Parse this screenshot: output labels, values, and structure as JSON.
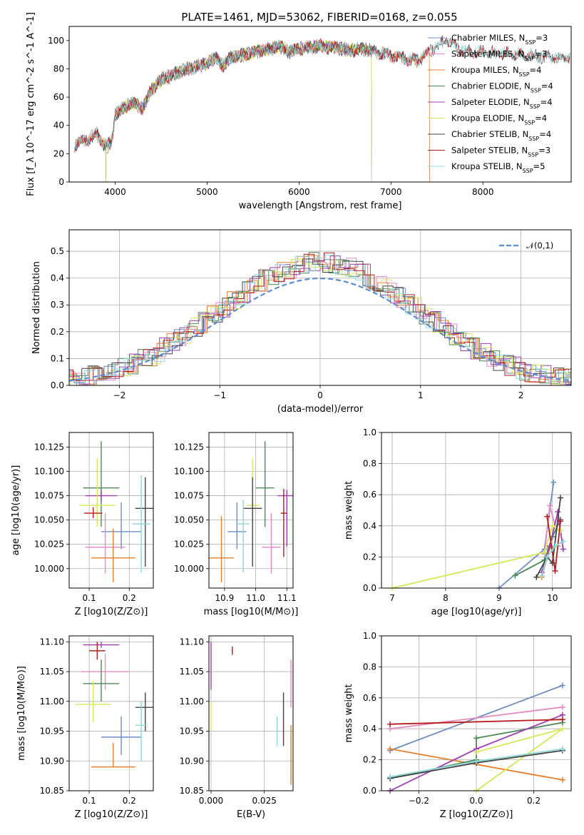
{
  "figure": {
    "title": "PLATE=1461, MJD=53062, FIBERID=0168, z=0.055"
  },
  "chart_data": [
    {
      "id": "spectrum",
      "type": "line",
      "xlabel": "wavelength [Angstrom, rest frame]",
      "ylabel": "Flux [f_λ 10^-17 erg cm^-2 s^-1 A^-1]",
      "xlim": [
        3500,
        8960
      ],
      "ylim": [
        0,
        110
      ],
      "xticks": [
        "4000",
        "5000",
        "6000",
        "7000",
        "8000"
      ],
      "yticks": [
        "0",
        "20",
        "40",
        "60",
        "80",
        "100"
      ],
      "grid": false,
      "legend_position": "top-right",
      "series": [
        {
          "name": "Chabrier MILES, N_SSP=3",
          "color": "#6c8ebf",
          "x_range": [
            3560,
            7420
          ]
        },
        {
          "name": "Salpeter MILES, N_SSP=3",
          "color": "#e68ac3",
          "x_range": [
            3560,
            7420
          ]
        },
        {
          "name": "Kroupa MILES, N_SSP=4",
          "color": "#e87e29",
          "x_range": [
            3560,
            7420
          ]
        },
        {
          "name": "Chabrier ELODIE, N_SSP=4",
          "color": "#4c8b57",
          "x_range": [
            3900,
            6790
          ]
        },
        {
          "name": "Salpeter ELODIE, N_SSP=4",
          "color": "#a03bb4",
          "x_range": [
            3900,
            6790
          ]
        },
        {
          "name": "Kroupa ELODIE, N_SSP=4",
          "color": "#d6e85a",
          "x_range": [
            3900,
            6790
          ]
        },
        {
          "name": "Chabrier STELIB, N_SSP=4",
          "color": "#444444",
          "x_range": [
            3560,
            8950
          ]
        },
        {
          "name": "Salpeter STELIB, N_SSP=3",
          "color": "#b71c1c",
          "x_range": [
            3560,
            8950
          ]
        },
        {
          "name": "Kroupa STELIB, N_SSP=5",
          "color": "#8fd8d8",
          "x_range": [
            3560,
            8950
          ]
        }
      ],
      "continuum_points": [
        [
          3560,
          26
        ],
        [
          3700,
          30
        ],
        [
          3800,
          34
        ],
        [
          3900,
          25
        ],
        [
          3960,
          28
        ],
        [
          4000,
          47
        ],
        [
          4100,
          53
        ],
        [
          4200,
          56
        ],
        [
          4300,
          52
        ],
        [
          4400,
          66
        ],
        [
          4500,
          72
        ],
        [
          4600,
          75
        ],
        [
          4700,
          78
        ],
        [
          4800,
          80
        ],
        [
          4900,
          82
        ],
        [
          5000,
          84
        ],
        [
          5100,
          88
        ],
        [
          5175,
          82
        ],
        [
          5250,
          88
        ],
        [
          5400,
          90
        ],
        [
          5600,
          93
        ],
        [
          5800,
          96
        ],
        [
          5890,
          92
        ],
        [
          6000,
          94
        ],
        [
          6200,
          96
        ],
        [
          6400,
          95
        ],
        [
          6563,
          93
        ],
        [
          6700,
          94
        ],
        [
          6900,
          91
        ],
        [
          7100,
          88
        ],
        [
          7300,
          86
        ],
        [
          7500,
          96
        ],
        [
          7600,
          100
        ],
        [
          7800,
          92
        ],
        [
          8000,
          92
        ],
        [
          8200,
          91
        ],
        [
          8400,
          90
        ],
        [
          8600,
          89
        ],
        [
          8800,
          88
        ],
        [
          8950,
          88
        ]
      ]
    },
    {
      "id": "residuals",
      "type": "histogram",
      "xlabel": "(data-model)/error",
      "ylabel": "Normed distribution",
      "xlim": [
        -2.5,
        2.5
      ],
      "ylim": [
        0,
        0.58
      ],
      "xticks": [
        "−2",
        "−1",
        "0",
        "1",
        "2"
      ],
      "yticks": [
        "0.0",
        "0.1",
        "0.2",
        "0.3",
        "0.4",
        "0.5"
      ],
      "grid": true,
      "legend_position": "top-right",
      "reference_curve": {
        "name": "𝒩(0,1)",
        "color": "#5b8bd6",
        "style": "dashed"
      },
      "bin_width": 0.1
    },
    {
      "id": "age-vs-Z",
      "type": "scatter",
      "xlabel": "Z [log10(Z/Z⊙)]",
      "ylabel": "age [log10(age/yr)]",
      "xlim": [
        0.05,
        0.26
      ],
      "ylim": [
        9.98,
        10.14
      ],
      "xticks": [
        "0.1",
        "0.2"
      ],
      "yticks": [
        "10.000",
        "10.025",
        "10.050",
        "10.075",
        "10.100",
        "10.125"
      ],
      "grid": true,
      "points": [
        {
          "series": 0,
          "x": 0.18,
          "y": 10.038,
          "xerr": 0.05,
          "yerr": [
            0.018,
            0.03
          ]
        },
        {
          "series": 1,
          "x": 0.14,
          "y": 10.022,
          "xerr": 0.05,
          "yerr": [
            0.027,
            0.035
          ]
        },
        {
          "series": 2,
          "x": 0.16,
          "y": 10.011,
          "xerr": 0.055,
          "yerr": [
            0.025,
            0.03
          ]
        },
        {
          "series": 3,
          "x": 0.13,
          "y": 10.083,
          "xerr": 0.045,
          "yerr": [
            0.04,
            0.048
          ]
        },
        {
          "series": 4,
          "x": 0.13,
          "y": 10.075,
          "xerr": 0.04,
          "yerr": [
            0.006,
            0.005
          ]
        },
        {
          "series": 5,
          "x": 0.12,
          "y": 10.065,
          "xerr": 0.045,
          "yerr": [
            0.022,
            0.048
          ]
        },
        {
          "series": 6,
          "x": 0.24,
          "y": 10.062,
          "xerr": 0.025,
          "yerr": [
            0.06,
            0.032
          ]
        },
        {
          "series": 7,
          "x": 0.11,
          "y": 10.057,
          "xerr": 0.023,
          "yerr": [
            0.005,
            0.006
          ]
        },
        {
          "series": 8,
          "x": 0.23,
          "y": 10.046,
          "xerr": 0.022,
          "yerr": [
            0.05,
            0.05
          ]
        }
      ]
    },
    {
      "id": "age-vs-mass",
      "type": "scatter",
      "xlabel": "mass [log10(M/M⊙)]",
      "ylabel": "",
      "xlim": [
        10.85,
        11.12
      ],
      "ylim": [
        9.98,
        10.14
      ],
      "xticks": [
        "10.9",
        "11.0",
        "11.1"
      ],
      "yticks": [
        "10.000",
        "10.025",
        "10.050",
        "10.075",
        "10.100",
        "10.125"
      ],
      "grid": true,
      "points": [
        {
          "series": 0,
          "x": 10.94,
          "y": 10.038,
          "xerr": 0.03,
          "yerr": [
            0.018,
            0.03
          ]
        },
        {
          "series": 1,
          "x": 11.05,
          "y": 10.022,
          "xerr": 0.03,
          "yerr": [
            0.027,
            0.035
          ]
        },
        {
          "series": 2,
          "x": 10.89,
          "y": 10.011,
          "xerr": 0.04,
          "yerr": [
            0.025,
            0.043
          ]
        },
        {
          "series": 3,
          "x": 11.03,
          "y": 10.083,
          "xerr": 0.03,
          "yerr": [
            0.04,
            0.048
          ]
        },
        {
          "series": 4,
          "x": 11.1,
          "y": 10.075,
          "xerr": 0.03,
          "yerr": [
            0.052,
            0.006
          ]
        },
        {
          "series": 5,
          "x": 10.99,
          "y": 10.065,
          "xerr": 0.02,
          "yerr": [
            0.022,
            0.048
          ]
        },
        {
          "series": 6,
          "x": 10.99,
          "y": 10.062,
          "xerr": 0.03,
          "yerr": [
            0.06,
            0.032
          ]
        },
        {
          "series": 7,
          "x": 11.09,
          "y": 10.057,
          "xerr": 0.01,
          "yerr": [
            0.045,
            0.025
          ]
        },
        {
          "series": 8,
          "x": 10.96,
          "y": 10.046,
          "xerr": 0.02,
          "yerr": [
            0.05,
            0.025
          ]
        }
      ]
    },
    {
      "id": "weight-vs-age",
      "type": "line",
      "xlabel": "age [log10(age/yr)]",
      "ylabel": "mass weight",
      "xlim": [
        6.8,
        10.35
      ],
      "ylim": [
        0,
        1.0
      ],
      "xticks": [
        "7",
        "8",
        "9",
        "10"
      ],
      "yticks": [
        "0.0",
        "0.2",
        "0.4",
        "0.6",
        "0.8",
        "1.0"
      ],
      "grid": true,
      "series": [
        {
          "series": 0,
          "points": [
            [
              9.0,
              0.0
            ],
            [
              9.85,
              0.25
            ],
            [
              10.02,
              0.68
            ]
          ]
        },
        {
          "series": 1,
          "points": [
            [
              9.85,
              0.22
            ],
            [
              9.95,
              0.53
            ],
            [
              10.05,
              0.4
            ]
          ]
        },
        {
          "series": 2,
          "points": [
            [
              9.8,
              0.07
            ],
            [
              9.95,
              0.26
            ],
            [
              10.1,
              0.27
            ]
          ]
        },
        {
          "series": 3,
          "points": [
            [
              9.3,
              0.08
            ],
            [
              9.85,
              0.18
            ],
            [
              10.0,
              0.33
            ],
            [
              10.15,
              0.44
            ]
          ]
        },
        {
          "series": 4,
          "points": [
            [
              9.8,
              0.1
            ],
            [
              9.95,
              0.27
            ],
            [
              10.1,
              0.49
            ],
            [
              10.2,
              0.25
            ]
          ]
        },
        {
          "series": 5,
          "points": [
            [
              7.0,
              0.0
            ],
            [
              9.85,
              0.23
            ],
            [
              10.0,
              0.4
            ],
            [
              10.15,
              0.37
            ]
          ]
        },
        {
          "series": 6,
          "points": [
            [
              9.7,
              0.07
            ],
            [
              9.9,
              0.2
            ],
            [
              10.0,
              0.16
            ],
            [
              10.15,
              0.58
            ]
          ]
        },
        {
          "series": 7,
          "points": [
            [
              9.9,
              0.46
            ],
            [
              10.05,
              0.11
            ],
            [
              10.15,
              0.43
            ]
          ]
        },
        {
          "series": 8,
          "points": [
            [
              9.8,
              0.08
            ],
            [
              9.9,
              0.2
            ],
            [
              10.05,
              0.27
            ],
            [
              10.2,
              0.3
            ]
          ]
        }
      ]
    },
    {
      "id": "mass-vs-Z",
      "type": "scatter",
      "xlabel": "Z [log10(Z/Z⊙)]",
      "ylabel": "mass [log10(M/M⊙)]",
      "xlim": [
        0.05,
        0.26
      ],
      "ylim": [
        10.85,
        11.11
      ],
      "xticks": [
        "0.1",
        "0.2"
      ],
      "yticks": [
        "10.85",
        "10.90",
        "10.95",
        "11.00",
        "11.05",
        "11.10"
      ],
      "grid": true,
      "points": [
        {
          "series": 0,
          "x": 0.18,
          "y": 10.94,
          "xerr": 0.05,
          "yerr": [
            0.03,
            0.035
          ]
        },
        {
          "series": 1,
          "x": 0.14,
          "y": 11.05,
          "xerr": 0.06,
          "yerr": [
            0.03,
            0.03
          ]
        },
        {
          "series": 2,
          "x": 0.16,
          "y": 10.89,
          "xerr": 0.055,
          "yerr": [
            0.0,
            0.04
          ]
        },
        {
          "series": 3,
          "x": 0.13,
          "y": 11.03,
          "xerr": 0.045,
          "yerr": [
            0.03,
            0.04
          ]
        },
        {
          "series": 4,
          "x": 0.13,
          "y": 11.095,
          "xerr": 0.045,
          "yerr": [
            0.005,
            0.005
          ]
        },
        {
          "series": 5,
          "x": 0.11,
          "y": 10.995,
          "xerr": 0.045,
          "yerr": [
            0.03,
            0.04
          ]
        },
        {
          "series": 6,
          "x": 0.24,
          "y": 10.99,
          "xerr": 0.025,
          "yerr": [
            0.04,
            0.025
          ]
        },
        {
          "series": 7,
          "x": 0.12,
          "y": 11.085,
          "xerr": 0.02,
          "yerr": [
            0.015,
            0.015
          ]
        },
        {
          "series": 8,
          "x": 0.23,
          "y": 10.96,
          "xerr": 0.015,
          "yerr": [
            0.06,
            0.04
          ]
        }
      ]
    },
    {
      "id": "mass-vs-EBV",
      "type": "scatter",
      "xlabel": "E(B-V)",
      "ylabel": "",
      "xlim": [
        -0.001,
        0.0385
      ],
      "ylim": [
        10.85,
        11.11
      ],
      "xticks": [
        "0.000",
        "0.025"
      ],
      "yticks": [
        "10.85",
        "10.90",
        "10.95",
        "11.00",
        "11.05",
        "11.10"
      ],
      "grid": true,
      "points": [
        {
          "series": 4,
          "x": 0.0,
          "y": 11.06,
          "yerr": [
            0.04,
            0.04
          ]
        },
        {
          "series": 5,
          "x": 0.0,
          "y": 10.98,
          "yerr": [
            0.03,
            0.02
          ]
        },
        {
          "series": 7,
          "x": 0.01,
          "y": 11.085,
          "yerr": [
            0.007,
            0.007
          ]
        },
        {
          "series": 8,
          "x": 0.031,
          "y": 10.95,
          "yerr": [
            0.025,
            0.025
          ]
        },
        {
          "series": 6,
          "x": 0.034,
          "y": 10.97,
          "yerr": [
            0.045,
            0.045
          ]
        },
        {
          "series": 1,
          "x": 0.0375,
          "y": 11.03,
          "yerr": [
            0.04,
            0.04
          ]
        },
        {
          "series": 2,
          "x": 0.0375,
          "y": 10.91,
          "yerr": [
            0.05,
            0.05
          ]
        }
      ]
    },
    {
      "id": "weight-vs-Z",
      "type": "line",
      "xlabel": "Z [log10(Z/Z⊙)]",
      "ylabel": "mass weight",
      "xlim": [
        -0.33,
        0.33
      ],
      "ylim": [
        0,
        1.0
      ],
      "xticks": [
        "−0.2",
        "0.0",
        "0.2"
      ],
      "yticks": [
        "0.0",
        "0.2",
        "0.4",
        "0.6",
        "0.8",
        "1.0"
      ],
      "grid": true,
      "series": [
        {
          "series": 0,
          "points": [
            [
              -0.3,
              0.26
            ],
            [
              0.3,
              0.68
            ]
          ]
        },
        {
          "series": 1,
          "points": [
            [
              -0.3,
              0.4
            ],
            [
              0.3,
              0.54
            ]
          ]
        },
        {
          "series": 2,
          "points": [
            [
              -0.3,
              0.27
            ],
            [
              0.3,
              0.07
            ]
          ]
        },
        {
          "series": 3,
          "points": [
            [
              -0.3,
              0.08
            ],
            [
              0.0,
              0.2
            ],
            [
              0.0,
              0.34
            ],
            [
              0.3,
              0.44
            ]
          ]
        },
        {
          "series": 4,
          "points": [
            [
              -0.3,
              0.0
            ],
            [
              0.0,
              0.27
            ],
            [
              0.3,
              0.49
            ]
          ]
        },
        {
          "series": 5,
          "points": [
            [
              0.0,
              0.0
            ],
            [
              0.3,
              0.4
            ],
            [
              0.0,
              0.25
            ]
          ]
        },
        {
          "series": 6,
          "points": [
            [
              -0.3,
              0.08
            ],
            [
              0.0,
              0.18
            ],
            [
              0.3,
              0.26
            ]
          ]
        },
        {
          "series": 7,
          "points": [
            [
              -0.3,
              0.43
            ],
            [
              0.3,
              0.46
            ]
          ]
        },
        {
          "series": 8,
          "points": [
            [
              -0.3,
              0.09
            ],
            [
              0.0,
              0.19
            ],
            [
              0.3,
              0.27
            ]
          ]
        }
      ]
    }
  ],
  "legend_spectrum": [
    {
      "model": "Chabrier MILES",
      "n": "=3"
    },
    {
      "model": "Salpeter MILES",
      "n": "=3"
    },
    {
      "model": "Kroupa MILES",
      "n": "=4"
    },
    {
      "model": "Chabrier ELODIE",
      "n": "=4"
    },
    {
      "model": "Salpeter ELODIE",
      "n": "=4"
    },
    {
      "model": "Kroupa ELODIE",
      "n": "=4"
    },
    {
      "model": "Chabrier STELIB",
      "n": "=4"
    },
    {
      "model": "Salpeter STELIB",
      "n": "=3"
    },
    {
      "model": "Kroupa STELIB",
      "n": "=5"
    }
  ],
  "colors": [
    "#6c8ebf",
    "#e68ac3",
    "#e87e29",
    "#4c8b57",
    "#a03bb4",
    "#d6e85a",
    "#444444",
    "#b71c1c",
    "#8fd8d8"
  ]
}
